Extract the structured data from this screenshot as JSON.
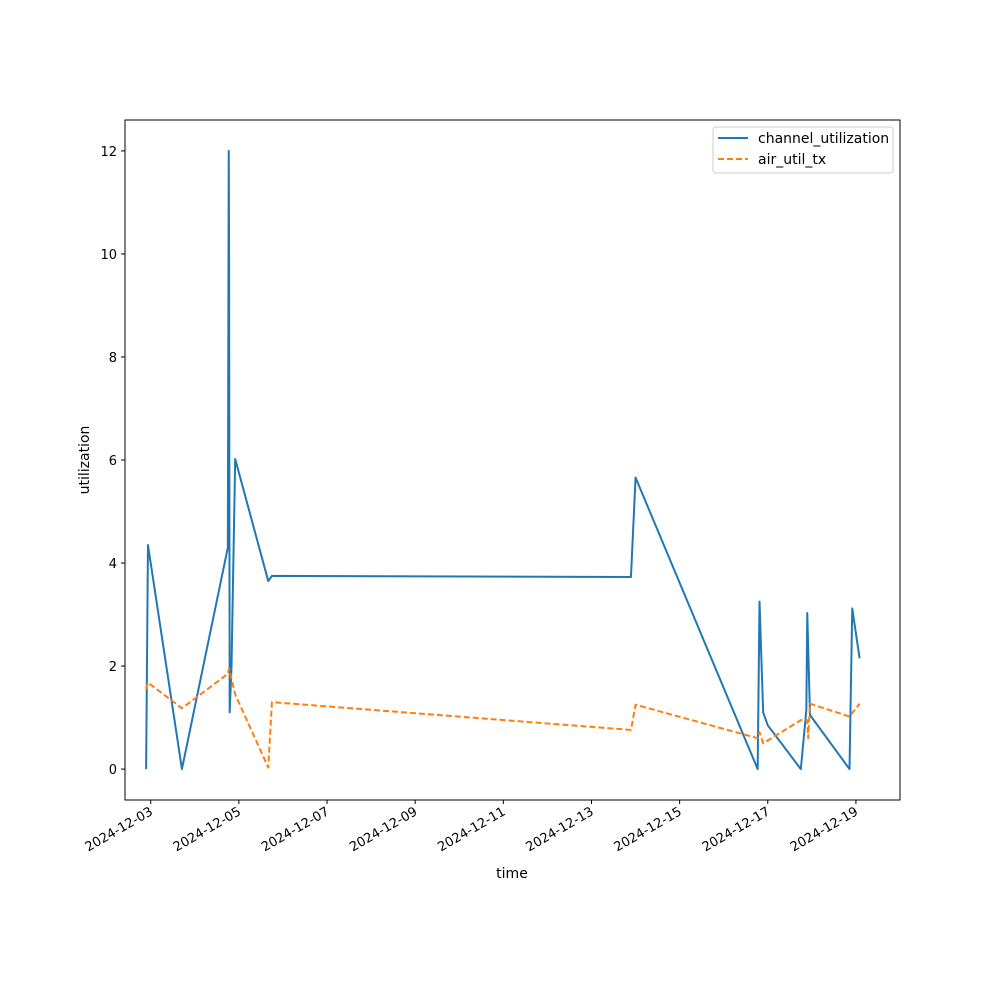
{
  "chart_data": {
    "type": "line",
    "title": "",
    "xlabel": "time",
    "ylabel": "utilization",
    "x_axis_type": "date",
    "xlim": [
      "2024-12-02T10:00",
      "2024-12-20T00:00"
    ],
    "ylim": [
      -0.6,
      12.6
    ],
    "x_ticks": [
      "2024-12-03",
      "2024-12-05",
      "2024-12-07",
      "2024-12-09",
      "2024-12-11",
      "2024-12-13",
      "2024-12-15",
      "2024-12-17",
      "2024-12-19"
    ],
    "y_ticks": [
      0,
      2,
      4,
      6,
      8,
      10,
      12
    ],
    "grid": false,
    "legend_position": "top-right",
    "series": [
      {
        "name": "channel_utilization",
        "color": "#1f77b4",
        "style": "solid",
        "points": [
          [
            "2024-12-02T21:30",
            0.0
          ],
          [
            "2024-12-02T22:30",
            4.35
          ],
          [
            "2024-12-03T17:00",
            0.0
          ],
          [
            "2024-12-04T18:00",
            4.3
          ],
          [
            "2024-12-04T18:30",
            12.0
          ],
          [
            "2024-12-04T18:40",
            10.0
          ],
          [
            "2024-12-04T19:00",
            1.1
          ],
          [
            "2024-12-04T20:00",
            2.0
          ],
          [
            "2024-12-04T22:00",
            6.02
          ],
          [
            "2024-12-05T16:00",
            3.65
          ],
          [
            "2024-12-05T18:00",
            3.75
          ],
          [
            "2024-12-13T21:30",
            3.73
          ],
          [
            "2024-12-14T00:00",
            5.66
          ],
          [
            "2024-12-16T18:30",
            0.0
          ],
          [
            "2024-12-16T19:30",
            3.25
          ],
          [
            "2024-12-16T21:30",
            1.1
          ],
          [
            "2024-12-17T00:00",
            0.85
          ],
          [
            "2024-12-17T18:00",
            0.0
          ],
          [
            "2024-12-17T21:00",
            1.15
          ],
          [
            "2024-12-17T21:30",
            3.03
          ],
          [
            "2024-12-17T23:00",
            1.05
          ],
          [
            "2024-12-18T20:30",
            0.0
          ],
          [
            "2024-12-18T22:00",
            3.12
          ],
          [
            "2024-12-19T02:00",
            2.15
          ]
        ]
      },
      {
        "name": "air_util_tx",
        "color": "#ff7f0e",
        "style": "dashed",
        "points": [
          [
            "2024-12-02T21:30",
            1.55
          ],
          [
            "2024-12-02T22:30",
            1.68
          ],
          [
            "2024-12-03T17:00",
            1.18
          ],
          [
            "2024-12-04T18:00",
            1.85
          ],
          [
            "2024-12-04T18:40",
            1.95
          ],
          [
            "2024-12-04T22:00",
            1.45
          ],
          [
            "2024-12-05T16:00",
            0.03
          ],
          [
            "2024-12-05T18:00",
            1.3
          ],
          [
            "2024-12-13T21:30",
            0.76
          ],
          [
            "2024-12-14T00:00",
            1.25
          ],
          [
            "2024-12-16T18:30",
            0.6
          ],
          [
            "2024-12-16T19:30",
            0.72
          ],
          [
            "2024-12-16T21:30",
            0.5
          ],
          [
            "2024-12-17T18:00",
            0.95
          ],
          [
            "2024-12-17T21:30",
            0.95
          ],
          [
            "2024-12-17T22:00",
            0.6
          ],
          [
            "2024-12-17T23:00",
            1.27
          ],
          [
            "2024-12-18T20:30",
            1.02
          ],
          [
            "2024-12-19T02:00",
            1.27
          ]
        ]
      }
    ]
  }
}
